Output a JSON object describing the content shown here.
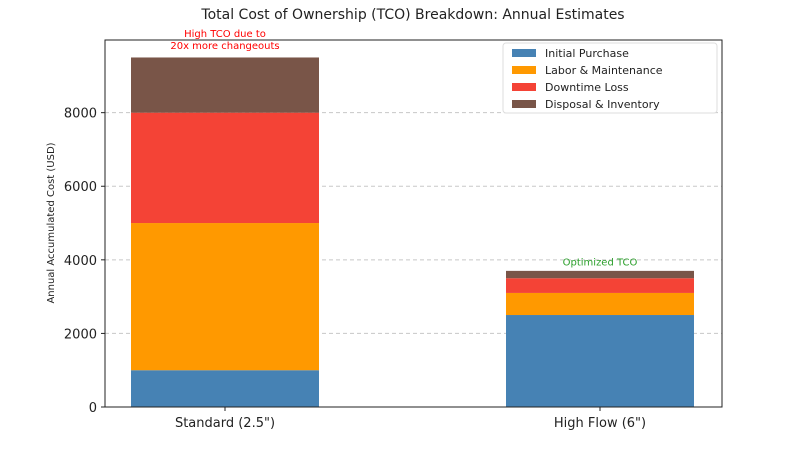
{
  "chart_data": {
    "type": "bar",
    "stacked": true,
    "title": "Total Cost of Ownership (TCO) Breakdown: Annual Estimates",
    "xlabel": "",
    "ylabel": "Annual Accumulated Cost (USD)",
    "categories": [
      "Standard (2.5\")",
      "High Flow (6\")"
    ],
    "ylim": [
      0,
      9975
    ],
    "yticks": [
      0,
      2000,
      4000,
      6000,
      8000
    ],
    "grid": "y-dashed",
    "legend_position": "top-right",
    "series": [
      {
        "name": "Initial Purchase",
        "values": [
          1000,
          2500
        ],
        "color": "#4682b4"
      },
      {
        "name": "Labor & Maintenance",
        "values": [
          4000,
          600
        ],
        "color": "#ff9900"
      },
      {
        "name": "Downtime Loss",
        "values": [
          3000,
          400
        ],
        "color": "#f44336"
      },
      {
        "name": "Disposal & Inventory",
        "values": [
          1500,
          200
        ],
        "color": "#795548"
      }
    ],
    "annotations": [
      {
        "text_lines": [
          "High TCO due to",
          "20x more changeouts"
        ],
        "category": 0,
        "y": 9900,
        "color": "#ff0000"
      },
      {
        "text_lines": [
          "Optimized TCO"
        ],
        "category": 1,
        "y": 3850,
        "color": "#2ca02c"
      }
    ]
  }
}
